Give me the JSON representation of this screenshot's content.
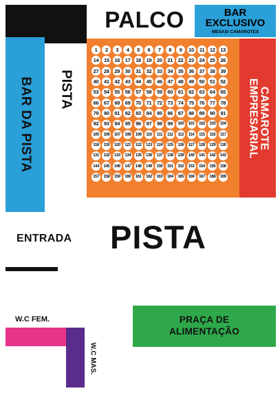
{
  "stage": {
    "label": "PALCO"
  },
  "bar_exclusivo": {
    "line1": "BAR",
    "line2": "EXCLUSIVO",
    "subtitle": "MESAS/ CAMAROTES"
  },
  "bar_da_pista": {
    "label": "BAR DA PISTA"
  },
  "pista_side": {
    "label": "PISTA"
  },
  "camarote": {
    "line1": "CAMAROTE",
    "line2": "EMPRESARIAL"
  },
  "pista_main": {
    "label": "PISTA"
  },
  "entrada": {
    "label": "ENTRADA"
  },
  "wc_fem": {
    "label": "W.C FEM."
  },
  "wc_mas": {
    "label": "W.C MAS."
  },
  "praca": {
    "line1": "PRAÇA DE",
    "line2": "ALIMENTAÇÃO"
  },
  "seating": {
    "first": 1,
    "last": 169,
    "columns": 13
  },
  "colors": {
    "black": "#111111",
    "blue": "#2a9fd8",
    "orange": "#f07f2e",
    "red": "#e23a2e",
    "green": "#2ea84a",
    "pink": "#e8338a",
    "purple": "#5a2d8c"
  }
}
